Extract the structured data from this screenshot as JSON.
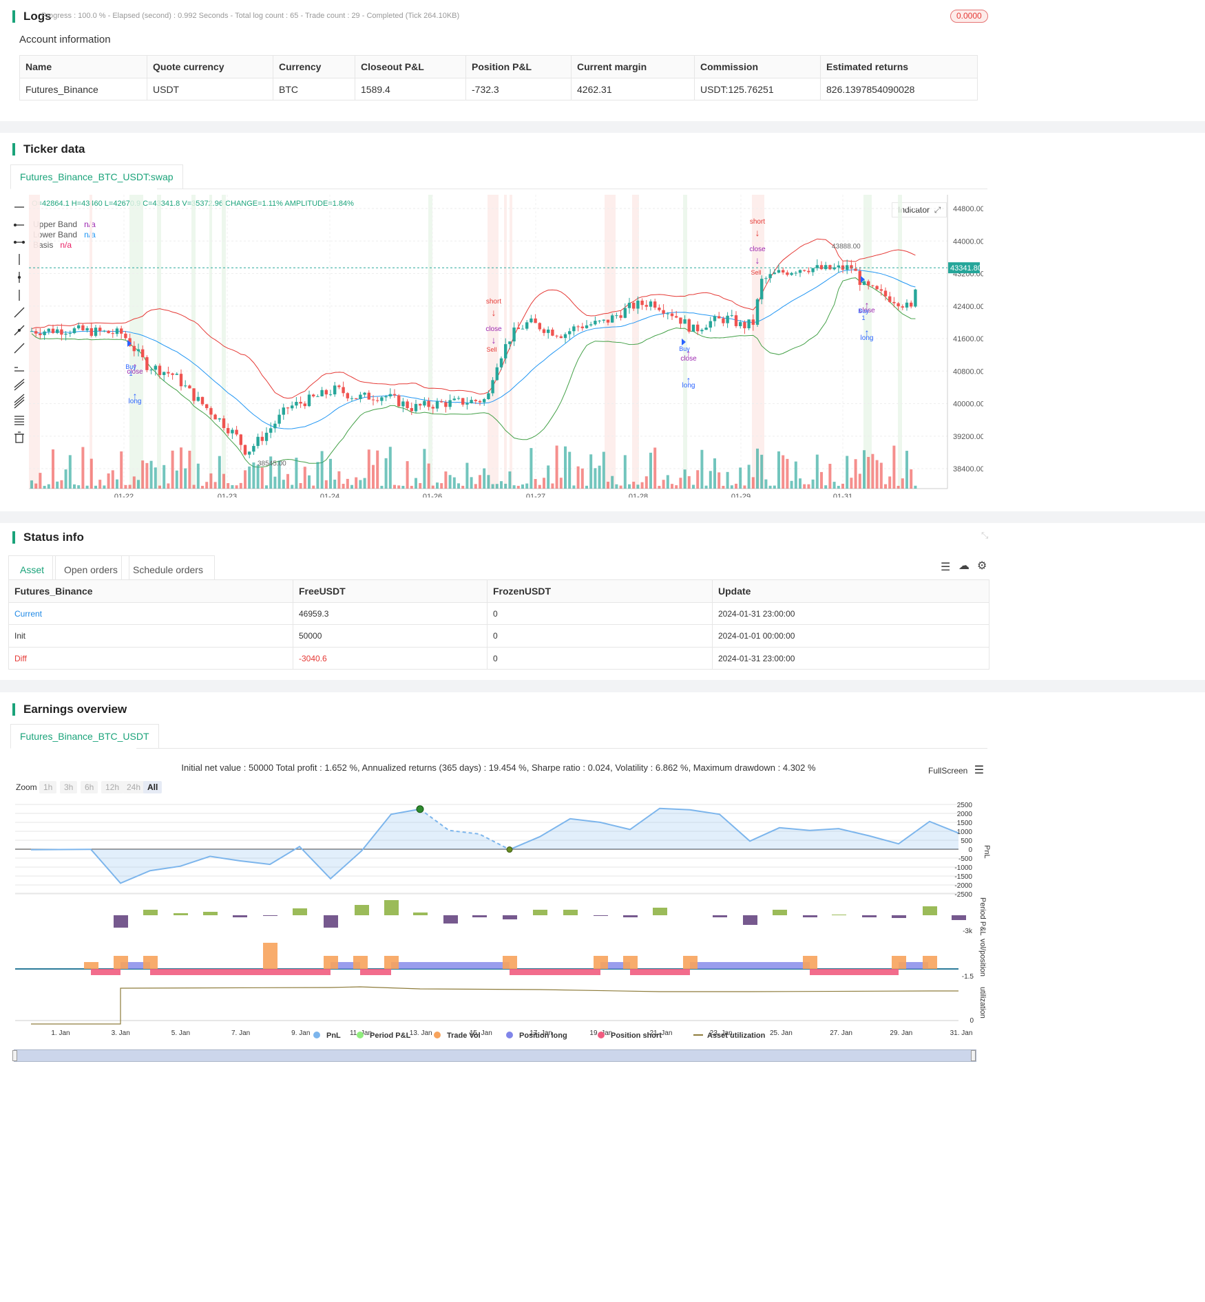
{
  "logs": {
    "title": "Logs",
    "progress": "Progress : 100.0 % - Elapsed (second) : 0.992  Seconds - Total log count : 65 - Trade count : 29 - Completed (Tick 264.10KB)",
    "badge": "0.0000"
  },
  "account": {
    "title": "Account information",
    "headers": [
      "Name",
      "Quote currency",
      "Currency",
      "Closeout P&L",
      "Position P&L",
      "Current margin",
      "Commission",
      "Estimated returns"
    ],
    "row": [
      "Futures_Binance",
      "USDT",
      "BTC",
      "1589.4",
      "-732.3",
      "4262.31",
      "USDT:125.76251",
      "826.1397854090028"
    ]
  },
  "ticker": {
    "title": "Ticker data",
    "tab": "Futures_Binance_BTC_USDT:swap",
    "ohlc": "O=42864.1 H=43460 L=42670.9 C=43341.8 V=35372.96 CHANGE=1.11% AMPLITUDE=1.84%",
    "legend": [
      {
        "name": "Upper Band",
        "value": "n/a",
        "color": "#9c27b0"
      },
      {
        "name": "Lower Band",
        "value": "n/a",
        "color": "#2196f3"
      },
      {
        "name": "Basis",
        "value": "n/a",
        "color": "#e91e63"
      }
    ],
    "indicator_btn": "Indicator",
    "price_labels": [
      "44800.00",
      "44000.00",
      "43200.00",
      "42400.00",
      "41600.00",
      "40800.00",
      "40000.00",
      "39200.00",
      "38400.00"
    ],
    "current_price": "43341.80",
    "date_labels": [
      "01-22",
      "01-23",
      "01-24",
      "01-26",
      "01-27",
      "01-28",
      "01-29",
      "01-31"
    ],
    "high_label": "43888.00",
    "low_label": "38545.00",
    "markers": {
      "short": "short",
      "close": "close",
      "long": "long",
      "buy": "Buy",
      "sell": "Sell",
      "one": "1"
    }
  },
  "status": {
    "title": "Status info",
    "tabs": [
      "Asset",
      "Open orders",
      "Schedule orders"
    ],
    "headers": [
      "Futures_Binance",
      "FreeUSDT",
      "FrozenUSDT",
      "Update"
    ],
    "rows": [
      [
        "Current",
        "46959.3",
        "0",
        "2024-01-31 23:00:00"
      ],
      [
        "Init",
        "50000",
        "0",
        "2024-01-01 00:00:00"
      ],
      [
        "Diff",
        "-3040.6",
        "0",
        "2024-01-31 23:00:00"
      ]
    ]
  },
  "earnings": {
    "title": "Earnings overview",
    "tab": "Futures_Binance_BTC_USDT",
    "summary": "Initial net value : 50000 Total profit : 1.652 %, Annualized returns (365 days) : 19.454 %, Sharpe ratio : 0.024, Volatility : 6.862 %, Maximum drawdown : 4.302 %",
    "fullscreen": "FullScreen",
    "zoom_label": "Zoom",
    "zoom_options": [
      "1h",
      "3h",
      "6h",
      "12h",
      "24h",
      "All"
    ],
    "pnl_ticks": [
      "2500",
      "2000",
      "1500",
      "1000",
      "500",
      "0",
      "-500",
      "-1000",
      "-1500",
      "-2000",
      "-2500"
    ],
    "pnl_axis": "PnL",
    "period_axis": "Period P&L",
    "period_tick": "-3k",
    "vol_axis": "vol/position",
    "vol_tick": "-1.5",
    "util_axis": "utilization",
    "util_tick": "0",
    "x_labels": [
      "1. Jan",
      "3. Jan",
      "5. Jan",
      "7. Jan",
      "9. Jan",
      "11. Jan",
      "13. Jan",
      "15. Jan",
      "17. Jan",
      "19. Jan",
      "21. Jan",
      "23. Jan",
      "25. Jan",
      "27. Jan",
      "29. Jan",
      "31. Jan"
    ],
    "legend": [
      {
        "name": "PnL",
        "color": "#7cb5ec"
      },
      {
        "name": "Period P&L",
        "color": "#90ed7d"
      },
      {
        "name": "Trade Vol",
        "color": "#f7a35c"
      },
      {
        "name": "Position long",
        "color": "#8085e9"
      },
      {
        "name": "Position short",
        "color": "#f15c80"
      },
      {
        "name": "Asset utilization",
        "color": "#8d7b3a"
      }
    ]
  }
}
